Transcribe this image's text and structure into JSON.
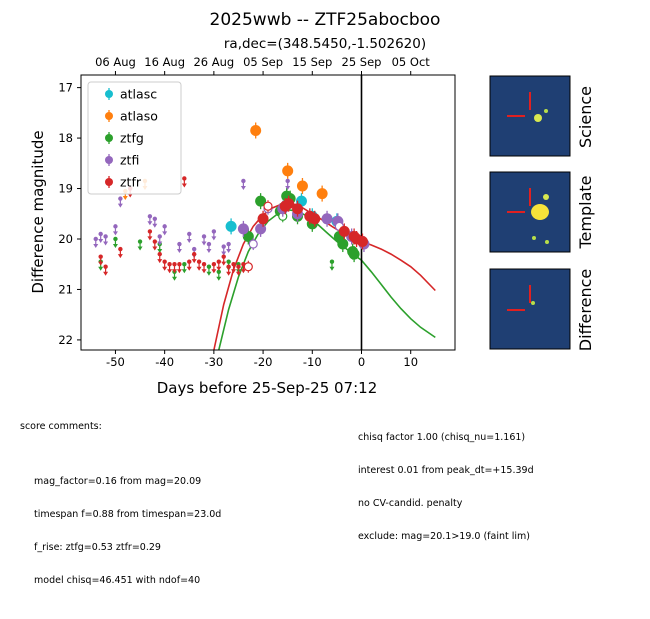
{
  "title": "2025wwb -- ZTF25abocboo",
  "subtitle": "ra,dec=(348.5450,-1.502620)",
  "chart_data": {
    "type": "scatter",
    "xlabel": "Days before 25-Sep-25 07:12",
    "ylabel": "Difference magnitude",
    "xlim": [
      -57,
      19
    ],
    "ylim": [
      22.2,
      16.75
    ],
    "y_inverted": true,
    "x_ticks": [
      -50,
      -40,
      -30,
      -20,
      -10,
      0,
      10
    ],
    "y_ticks": [
      17,
      18,
      19,
      20,
      21,
      22
    ],
    "top_axis_ticks": [
      {
        "x": -50,
        "label": "06 Aug"
      },
      {
        "x": -40,
        "label": "16 Aug"
      },
      {
        "x": -30,
        "label": "26 Aug"
      },
      {
        "x": -20,
        "label": "05 Sep"
      },
      {
        "x": -10,
        "label": "15 Sep"
      },
      {
        "x": 0,
        "label": "25 Sep"
      },
      {
        "x": 10,
        "label": "05 Oct"
      }
    ],
    "vertical_line_x": 0,
    "legend_position": "upper-left",
    "colors": {
      "atlasc": "#17becf",
      "atlaso": "#ff7f0e",
      "ztfg": "#2ca02c",
      "ztfi": "#9467bd",
      "ztfr": "#d62728"
    },
    "series": [
      {
        "name": "atlasc",
        "color": "#17becf",
        "points": [
          [
            -26.5,
            19.75
          ],
          [
            -12.2,
            19.25
          ],
          [
            -10.0,
            19.55
          ],
          [
            -5.0,
            19.65
          ]
        ],
        "upper_limits": []
      },
      {
        "name": "atlaso",
        "color": "#ff7f0e",
        "points": [
          [
            -21.5,
            17.85
          ],
          [
            -15.0,
            18.65
          ],
          [
            -12.0,
            18.95
          ],
          [
            -8.0,
            19.1
          ]
        ],
        "upper_limits": [
          [
            -48.0,
            19.05
          ],
          [
            -44.0,
            18.85
          ]
        ]
      },
      {
        "name": "ztfg",
        "color": "#2ca02c",
        "points": [
          [
            -23.0,
            19.95
          ],
          [
            -20.5,
            19.25
          ],
          [
            -16.5,
            19.45
          ],
          [
            -15.2,
            19.15
          ],
          [
            -14.5,
            19.2
          ],
          [
            -13.0,
            19.55
          ],
          [
            -10.0,
            19.7
          ],
          [
            -4.5,
            19.95
          ],
          [
            -3.8,
            20.1
          ],
          [
            -1.8,
            20.25
          ],
          [
            -1.5,
            20.3
          ]
        ],
        "open_points": [
          [
            -16.0,
            19.55
          ]
        ],
        "upper_limits": [
          [
            -53.0,
            20.45
          ],
          [
            -50.0,
            20.0
          ],
          [
            -45.0,
            20.05
          ],
          [
            -41.0,
            20.1
          ],
          [
            -38.0,
            20.65
          ],
          [
            -36.0,
            20.5
          ],
          [
            -31.0,
            20.55
          ],
          [
            -29.0,
            20.65
          ],
          [
            -27.0,
            20.45
          ],
          [
            -25.0,
            20.5
          ],
          [
            -6.0,
            20.45
          ]
        ]
      },
      {
        "name": "ztfi",
        "color": "#9467bd",
        "points": [
          [
            -24.0,
            19.8
          ],
          [
            -20.5,
            19.8
          ],
          [
            -16.0,
            19.4
          ],
          [
            -13.0,
            19.5
          ],
          [
            -7.0,
            19.6
          ],
          [
            -4.8,
            19.65
          ],
          [
            -2.0,
            19.95
          ],
          [
            0.5,
            20.1
          ]
        ],
        "open_points": [
          [
            -22.0,
            20.1
          ],
          [
            -19.0,
            19.4
          ],
          [
            -4.5,
            19.75
          ]
        ],
        "upper_limits": [
          [
            -54.0,
            20.0
          ],
          [
            -53.0,
            19.9
          ],
          [
            -52.0,
            19.95
          ],
          [
            -50.0,
            19.75
          ],
          [
            -49.0,
            19.2
          ],
          [
            -43.0,
            19.55
          ],
          [
            -42.0,
            19.6
          ],
          [
            -41.0,
            19.95
          ],
          [
            -40.0,
            19.75
          ],
          [
            -37.0,
            20.1
          ],
          [
            -35.0,
            19.9
          ],
          [
            -34.0,
            20.2
          ],
          [
            -32.0,
            19.95
          ],
          [
            -31.0,
            20.1
          ],
          [
            -30.0,
            19.85
          ],
          [
            -28.0,
            20.15
          ],
          [
            -27.0,
            20.1
          ],
          [
            -24.0,
            18.85
          ],
          [
            -15.0,
            18.85
          ]
        ]
      },
      {
        "name": "ztfr",
        "color": "#d62728",
        "points": [
          [
            -20.0,
            19.6
          ],
          [
            -15.5,
            19.35
          ],
          [
            -14.8,
            19.3
          ],
          [
            -13.0,
            19.4
          ],
          [
            -10.5,
            19.55
          ],
          [
            -9.5,
            19.6
          ],
          [
            -3.5,
            19.85
          ],
          [
            -1.5,
            19.95
          ],
          [
            -1.0,
            20.0
          ],
          [
            0.2,
            20.05
          ]
        ],
        "open_points": [
          [
            -23.0,
            20.55
          ],
          [
            -19.0,
            19.35
          ]
        ],
        "upper_limits": [
          [
            -53.0,
            20.35
          ],
          [
            -52.0,
            20.55
          ],
          [
            -49.0,
            20.2
          ],
          [
            -47.0,
            19.0
          ],
          [
            -43.0,
            19.85
          ],
          [
            -42.0,
            20.05
          ],
          [
            -41.0,
            20.3
          ],
          [
            -40.0,
            20.45
          ],
          [
            -39.0,
            20.5
          ],
          [
            -38.0,
            20.5
          ],
          [
            -37.0,
            20.5
          ],
          [
            -35.0,
            20.45
          ],
          [
            -34.0,
            20.3
          ],
          [
            -33.0,
            20.45
          ],
          [
            -32.0,
            20.5
          ],
          [
            -30.0,
            20.5
          ],
          [
            -29.0,
            20.45
          ],
          [
            -28.0,
            20.35
          ],
          [
            -27.0,
            20.55
          ],
          [
            -26.0,
            20.5
          ],
          [
            -25.0,
            20.55
          ],
          [
            -24.0,
            20.5
          ],
          [
            -36.0,
            18.8
          ]
        ]
      }
    ],
    "model_curves": [
      {
        "name": "ztfg",
        "color": "#2ca02c",
        "points": [
          [
            -29.0,
            22.2
          ],
          [
            -27.0,
            21.4
          ],
          [
            -25.0,
            20.75
          ],
          [
            -23.0,
            20.25
          ],
          [
            -21.0,
            19.9
          ],
          [
            -19.0,
            19.65
          ],
          [
            -17.0,
            19.5
          ],
          [
            -15.0,
            19.42
          ],
          [
            -13.0,
            19.45
          ],
          [
            -11.0,
            19.55
          ],
          [
            -9.0,
            19.7
          ],
          [
            -7.0,
            19.88
          ],
          [
            -5.0,
            20.05
          ],
          [
            -3.0,
            20.2
          ],
          [
            -1.0,
            20.35
          ],
          [
            0.0,
            20.42
          ],
          [
            2.0,
            20.65
          ],
          [
            4.0,
            20.9
          ],
          [
            6.0,
            21.15
          ],
          [
            8.0,
            21.38
          ],
          [
            10.0,
            21.58
          ],
          [
            12.0,
            21.75
          ],
          [
            15.0,
            21.95
          ]
        ]
      },
      {
        "name": "ztfr",
        "color": "#d62728",
        "points": [
          [
            -30.0,
            22.2
          ],
          [
            -28.0,
            21.3
          ],
          [
            -26.0,
            20.6
          ],
          [
            -24.0,
            20.1
          ],
          [
            -22.0,
            19.75
          ],
          [
            -20.0,
            19.52
          ],
          [
            -18.0,
            19.38
          ],
          [
            -16.0,
            19.3
          ],
          [
            -14.0,
            19.3
          ],
          [
            -12.0,
            19.38
          ],
          [
            -10.0,
            19.5
          ],
          [
            -8.0,
            19.62
          ],
          [
            -6.0,
            19.75
          ],
          [
            -4.0,
            19.87
          ],
          [
            -2.0,
            19.97
          ],
          [
            0.0,
            20.05
          ],
          [
            2.0,
            20.12
          ],
          [
            4.0,
            20.2
          ],
          [
            6.0,
            20.3
          ],
          [
            8.0,
            20.42
          ],
          [
            10.0,
            20.55
          ],
          [
            12.0,
            20.72
          ],
          [
            15.0,
            21.02
          ]
        ]
      }
    ]
  },
  "cutouts": [
    {
      "label": "Science"
    },
    {
      "label": "Template"
    },
    {
      "label": "Difference"
    }
  ],
  "comments_left": {
    "header": "score comments:",
    "lines": [
      "mag_factor=0.16 from mag=20.09",
      "timespan f=0.88 from timespan=23.0d",
      "f_rise: ztfg=0.53 ztfr=0.29",
      "model chisq=46.451 with ndof=40"
    ]
  },
  "comments_right": {
    "lines": [
      "chisq factor 1.00 (chisq_nu=1.161)",
      "interest 0.01 from peak_dt=+15.39d",
      "no CV-candid. penalty",
      "exclude: mag=20.1>19.0 (faint lim)"
    ]
  }
}
